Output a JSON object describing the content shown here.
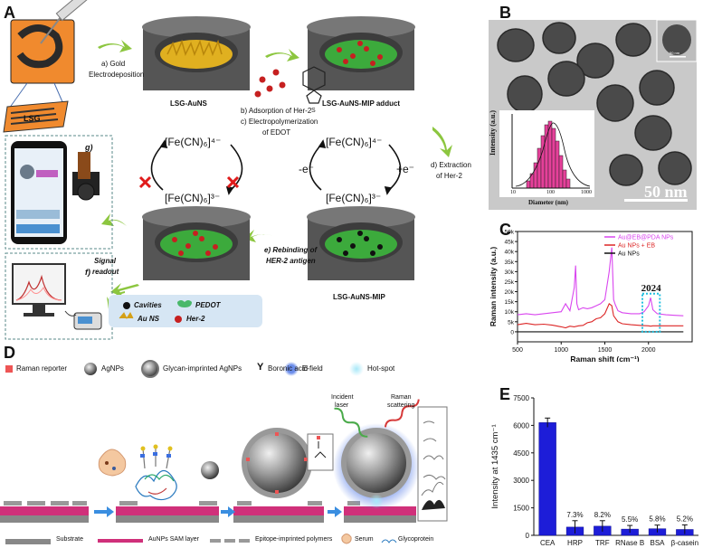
{
  "panels": {
    "a": "A",
    "b": "B",
    "c": "C",
    "d": "D",
    "e": "E"
  },
  "panel_a": {
    "lsg": "LSG",
    "step_a": "a) Gold",
    "step_a2": "Electrodeposition",
    "lsg_auns": "LSG-AuNS",
    "step_b": "b) Adsorption of Her-2",
    "step_c": "c) Electropolymerization",
    "step_c2": "of EDOT",
    "mip_adduct": "LSG-AuNS-MIP adduct",
    "step_d": "d) Extraction",
    "step_d2": "of Her-2",
    "fe4_left": "[Fe(CN)₆]⁴⁻",
    "fe3_left": "[Fe(CN)₆]³⁻",
    "fe4_right": "[Fe(CN)₆]⁴⁻",
    "fe3_right": "[Fe(CN)₆]³⁻",
    "minus_e": "-e⁻",
    "plus_e": "+e⁻",
    "step_e": "e) Rebinding of",
    "step_e2": "HER-2 antigen",
    "mip": "LSG-AuNS-MIP",
    "step_f": "f)",
    "signal": "Signal",
    "readout": "readout",
    "step_g": "g)",
    "legend_cavities": "Cavities",
    "legend_pedot": "PEDOT",
    "legend_auns": "Au NS",
    "legend_her2": "Her-2"
  },
  "panel_b": {
    "scale_bar": "50 nm",
    "inset_scale": "50 nm",
    "ylabel": "Intensity (a.u.)",
    "xlabel": "Diameter (nm)",
    "x_ticks": [
      "10",
      "100",
      "1000"
    ]
  },
  "panel_d": {
    "legend_raman": "Raman reporter",
    "legend_agnps": "AgNPs",
    "legend_glycan": "Glycan-imprinted AgNPs",
    "legend_boronic_symbol": "Y",
    "legend_boronic": "Boronic acid",
    "legend_efield": "E-field",
    "legend_hotspot": "Hot-spot",
    "incident": "Incident",
    "laser": "laser",
    "raman": "Raman",
    "scattering": "scattering",
    "legend_substrate": "Substrate",
    "legend_sam": "AuNPs SAM layer",
    "legend_epitope": "Epitope-imprinted polymers",
    "legend_serum": "Serum",
    "legend_glyco": "Glycoprotein"
  },
  "chart_data": [
    {
      "type": "line",
      "panel": "C",
      "xlabel": "Raman shift (cm⁻¹)",
      "ylabel": "Raman intensity (a.u.)",
      "xlim": [
        500,
        2500
      ],
      "ylim": [
        -5000,
        50000
      ],
      "x_ticks": [
        "500",
        "1000",
        "1500",
        "2000"
      ],
      "y_ticks": [
        "0",
        "5k",
        "10k",
        "15k",
        "20k",
        "25k",
        "30k",
        "35k",
        "40k",
        "45k",
        "50k"
      ],
      "annotation": "2024",
      "legend_position": "top-right",
      "series": [
        {
          "name": "Au@EB@PDA NPs",
          "color": "#d946ef",
          "x": [
            500,
            600,
            700,
            800,
            900,
            1000,
            1050,
            1100,
            1150,
            1165,
            1180,
            1200,
            1250,
            1300,
            1350,
            1400,
            1450,
            1500,
            1550,
            1580,
            1600,
            1620,
            1650,
            1700,
            1800,
            1900,
            1950,
            2000,
            2024,
            2050,
            2100,
            2200,
            2300,
            2400
          ],
          "y": [
            8500,
            9000,
            8500,
            9000,
            9500,
            10000,
            14000,
            10500,
            22000,
            33000,
            14000,
            11000,
            12000,
            11500,
            12000,
            13000,
            14000,
            16000,
            30000,
            42000,
            16000,
            13500,
            10500,
            9500,
            9000,
            9000,
            10000,
            13000,
            17000,
            11000,
            9000,
            8500,
            8200,
            8000
          ]
        },
        {
          "name": "Au NPs + EB",
          "color": "#dc2626",
          "x": [
            500,
            600,
            700,
            800,
            900,
            1000,
            1050,
            1100,
            1150,
            1200,
            1250,
            1300,
            1350,
            1400,
            1450,
            1500,
            1550,
            1580,
            1600,
            1650,
            1700,
            1800,
            1900,
            2000,
            2024,
            2050,
            2100,
            2200,
            2300,
            2400
          ],
          "y": [
            3500,
            4200,
            3500,
            3800,
            3300,
            2500,
            2000,
            2800,
            2500,
            3000,
            3200,
            4500,
            5000,
            6500,
            7000,
            9000,
            14000,
            13000,
            8000,
            5000,
            4000,
            3500,
            3200,
            3000,
            2800,
            3000,
            3000,
            3000,
            3000,
            3000
          ]
        },
        {
          "name": "Au NPs",
          "color": "#111111",
          "x": [
            500,
            1000,
            1500,
            2000,
            2400
          ],
          "y": [
            0,
            0,
            0,
            0,
            0
          ]
        }
      ]
    },
    {
      "type": "bar",
      "panel": "E",
      "categories": [
        "CEA",
        "HRP",
        "TRF",
        "RNase B",
        "BSA",
        "β-casein"
      ],
      "values": [
        6150,
        450,
        500,
        340,
        360,
        320
      ],
      "errors": [
        250,
        350,
        300,
        200,
        200,
        250
      ],
      "labels": [
        "",
        "7.3%",
        "8.2%",
        "5.5%",
        "5.8%",
        "5.2%"
      ],
      "ylabel": "Intensity at 1435 cm⁻¹",
      "ylim": [
        0,
        7500
      ],
      "y_ticks": [
        "0",
        "1500",
        "3000",
        "4500",
        "6000",
        "7500"
      ],
      "color": "#1d1dd8"
    }
  ]
}
